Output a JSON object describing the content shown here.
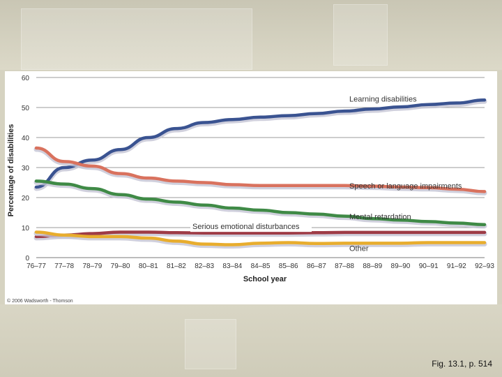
{
  "caption": "Fig. 13.1, p. 514",
  "credit": "© 2006 Wadsworth - Thomson",
  "colors": {
    "learning": "#3a5391",
    "speech": "#d9725e",
    "mental": "#3f8a46",
    "emotional": "#9e3b46",
    "other": "#e8ad2e",
    "grid": "#7a7a7a"
  },
  "chart_data": {
    "type": "line",
    "title": "",
    "xlabel": "School year",
    "ylabel": "Percentage of disabilities",
    "ylim": [
      0,
      60
    ],
    "yticks": [
      "0",
      "10",
      "20",
      "30",
      "40",
      "50",
      "60"
    ],
    "categories": [
      "76–77",
      "77–78",
      "78–79",
      "79–80",
      "80–81",
      "81–82",
      "82–83",
      "83–84",
      "84–85",
      "85–86",
      "86–87",
      "87–88",
      "88–89",
      "89–90",
      "90–91",
      "91–92",
      "92–93"
    ],
    "grid": "horizontal",
    "series": [
      {
        "key": "learning",
        "name": "Learning disabilities",
        "values": [
          23.5,
          30,
          32.5,
          36,
          40,
          43,
          45,
          46,
          46.8,
          47.3,
          48,
          48.8,
          49.5,
          50.2,
          51,
          51.5,
          52.5
        ]
      },
      {
        "key": "speech",
        "name": "Speech or language impairments",
        "values": [
          36.5,
          32,
          30.5,
          28,
          26.5,
          25.5,
          25,
          24.3,
          24,
          24,
          24,
          24,
          23.8,
          23.5,
          23.3,
          22.8,
          22
        ]
      },
      {
        "key": "mental",
        "name": "Mental retardation",
        "values": [
          25.5,
          24.5,
          23,
          21,
          19.5,
          18.5,
          17.5,
          16.5,
          15.8,
          15,
          14.5,
          13.8,
          13,
          12.5,
          12,
          11.5,
          11
        ]
      },
      {
        "key": "emotional",
        "name": "Serious emotional disturbances",
        "values": [
          7,
          7.5,
          8,
          8.5,
          8.5,
          8.3,
          8.2,
          8.2,
          8.2,
          8.2,
          8.3,
          8.4,
          8.4,
          8.4,
          8.4,
          8.4,
          8.4
        ]
      },
      {
        "key": "other",
        "name": "Other",
        "values": [
          8.5,
          7.5,
          7,
          7,
          6.5,
          5.5,
          4.5,
          4.3,
          4.8,
          5,
          4.7,
          4.8,
          4.8,
          4.8,
          5,
          5,
          5
        ]
      }
    ]
  }
}
